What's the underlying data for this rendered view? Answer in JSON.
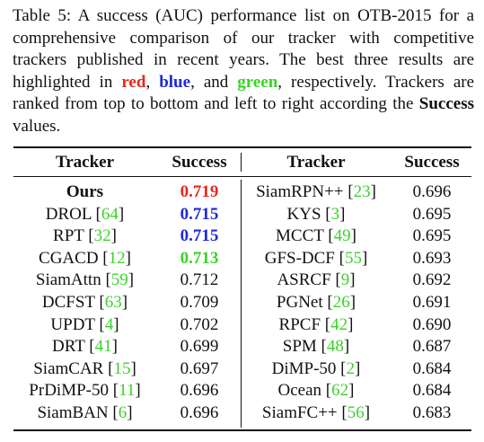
{
  "caption": {
    "t1": "Table 5: A success (AUC) performance list on OTB-2015 for a comprehensive comparison of our tracker with competitive trackers published in recent years. The best three results are highlighted in ",
    "red": "red",
    "sep1": ", ",
    "blue": "blue",
    "sep2": ", and ",
    "green": "green",
    "t2": ", respectively. Trackers are ranked from top to bottom and left to right according the ",
    "success": "Success",
    "t3": " values."
  },
  "headers": {
    "tracker_left": "Tracker",
    "success_left": "Success",
    "tracker_right": "Tracker",
    "success_right": "Success"
  },
  "left": [
    {
      "name": "Ours",
      "ref": "",
      "value": "0.719"
    },
    {
      "name": "DROL [",
      "ref": "64",
      "value": "0.715"
    },
    {
      "name": "RPT [",
      "ref": "32",
      "value": "0.715"
    },
    {
      "name": "CGACD [",
      "ref": "12",
      "value": "0.713"
    },
    {
      "name": "SiamAttn [",
      "ref": "59",
      "value": "0.712"
    },
    {
      "name": "DCFST [",
      "ref": "63",
      "value": "0.709"
    },
    {
      "name": "UPDT [",
      "ref": "4",
      "value": "0.702"
    },
    {
      "name": "DRT [",
      "ref": "41",
      "value": "0.699"
    },
    {
      "name": "SiamCAR [",
      "ref": "15",
      "value": "0.697"
    },
    {
      "name": "PrDiMP-50 [",
      "ref": "11",
      "value": "0.696"
    },
    {
      "name": "SiamBAN [",
      "ref": "6",
      "value": "0.696"
    }
  ],
  "right": [
    {
      "name": "SiamRPN++ [",
      "ref": "23",
      "value": "0.696"
    },
    {
      "name": "KYS [",
      "ref": "3",
      "value": "0.695"
    },
    {
      "name": "MCCT [",
      "ref": "49",
      "value": "0.695"
    },
    {
      "name": "GFS-DCF [",
      "ref": "55",
      "value": "0.693"
    },
    {
      "name": "ASRCF [",
      "ref": "9",
      "value": "0.692"
    },
    {
      "name": "PGNet [",
      "ref": "26",
      "value": "0.691"
    },
    {
      "name": "RPCF [",
      "ref": "42",
      "value": "0.690"
    },
    {
      "name": "SPM [",
      "ref": "48",
      "value": "0.687"
    },
    {
      "name": "DiMP-50 [",
      "ref": "2",
      "value": "0.684"
    },
    {
      "name": "Ocean [",
      "ref": "62",
      "value": "0.684"
    },
    {
      "name": "SiamFC++ [",
      "ref": "56",
      "value": "0.683"
    }
  ],
  "close_bracket": "]",
  "colors": {
    "first": "#e8271e",
    "second": "#1f2ad4",
    "third": "#3cd22a",
    "reference": "#3cd22a"
  }
}
